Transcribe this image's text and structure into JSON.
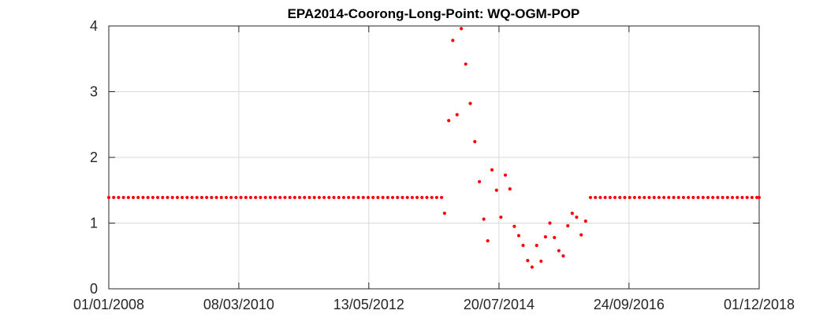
{
  "chart_data": {
    "type": "scatter",
    "title": "EPA2014-Coorong-Long-Point: WQ-OGM-POP",
    "xlabel": "",
    "ylabel": "",
    "x_axis_type": "date",
    "xlim": [
      "2008-01-01",
      "2018-12-01"
    ],
    "ylim": [
      0,
      4
    ],
    "grid": true,
    "marker_color": "#ff0000",
    "x_ticks": [
      {
        "date": "2008-01-01",
        "label": "01/01/2008"
      },
      {
        "date": "2010-03-08",
        "label": "08/03/2010"
      },
      {
        "date": "2012-05-13",
        "label": "13/05/2012"
      },
      {
        "date": "2014-07-20",
        "label": "20/07/2014"
      },
      {
        "date": "2016-09-24",
        "label": "24/09/2016"
      },
      {
        "date": "2018-12-01",
        "label": "01/12/2018"
      }
    ],
    "y_ticks": [
      0,
      1,
      2,
      3,
      4
    ],
    "series": [
      {
        "points": [
          [
            "2008-01-01",
            1.39
          ],
          [
            "2008-01-31",
            1.39
          ],
          [
            "2008-03-01",
            1.39
          ],
          [
            "2008-03-31",
            1.39
          ],
          [
            "2008-04-30",
            1.39
          ],
          [
            "2008-05-30",
            1.39
          ],
          [
            "2008-06-29",
            1.39
          ],
          [
            "2008-07-29",
            1.39
          ],
          [
            "2008-08-28",
            1.39
          ],
          [
            "2008-09-27",
            1.39
          ],
          [
            "2008-10-27",
            1.39
          ],
          [
            "2008-11-26",
            1.39
          ],
          [
            "2008-12-26",
            1.39
          ],
          [
            "2009-01-25",
            1.39
          ],
          [
            "2009-02-24",
            1.39
          ],
          [
            "2009-03-26",
            1.39
          ],
          [
            "2009-04-25",
            1.39
          ],
          [
            "2009-05-25",
            1.39
          ],
          [
            "2009-06-24",
            1.39
          ],
          [
            "2009-07-24",
            1.39
          ],
          [
            "2009-08-23",
            1.39
          ],
          [
            "2009-09-22",
            1.39
          ],
          [
            "2009-10-22",
            1.39
          ],
          [
            "2009-11-21",
            1.39
          ],
          [
            "2009-12-21",
            1.39
          ],
          [
            "2010-01-20",
            1.39
          ],
          [
            "2010-02-19",
            1.39
          ],
          [
            "2010-03-21",
            1.39
          ],
          [
            "2010-04-20",
            1.39
          ],
          [
            "2010-05-20",
            1.39
          ],
          [
            "2010-06-19",
            1.39
          ],
          [
            "2010-07-19",
            1.39
          ],
          [
            "2010-08-18",
            1.39
          ],
          [
            "2010-09-17",
            1.39
          ],
          [
            "2010-10-17",
            1.39
          ],
          [
            "2010-11-16",
            1.39
          ],
          [
            "2010-12-16",
            1.39
          ],
          [
            "2011-01-15",
            1.39
          ],
          [
            "2011-02-14",
            1.39
          ],
          [
            "2011-03-16",
            1.39
          ],
          [
            "2011-04-15",
            1.39
          ],
          [
            "2011-05-15",
            1.39
          ],
          [
            "2011-06-14",
            1.39
          ],
          [
            "2011-07-14",
            1.39
          ],
          [
            "2011-08-13",
            1.39
          ],
          [
            "2011-09-12",
            1.39
          ],
          [
            "2011-10-12",
            1.39
          ],
          [
            "2011-11-11",
            1.39
          ],
          [
            "2011-12-11",
            1.39
          ],
          [
            "2012-01-10",
            1.39
          ],
          [
            "2012-02-09",
            1.39
          ],
          [
            "2012-03-10",
            1.39
          ],
          [
            "2012-04-09",
            1.39
          ],
          [
            "2012-05-09",
            1.39
          ],
          [
            "2012-06-08",
            1.39
          ],
          [
            "2012-07-08",
            1.39
          ],
          [
            "2012-08-07",
            1.39
          ],
          [
            "2012-09-06",
            1.39
          ],
          [
            "2012-10-06",
            1.39
          ],
          [
            "2012-11-05",
            1.39
          ],
          [
            "2012-12-05",
            1.39
          ],
          [
            "2013-01-04",
            1.39
          ],
          [
            "2013-02-03",
            1.39
          ],
          [
            "2013-03-05",
            1.39
          ],
          [
            "2013-04-04",
            1.39
          ],
          [
            "2013-05-04",
            1.39
          ],
          [
            "2013-06-03",
            1.39
          ],
          [
            "2013-07-03",
            1.39
          ],
          [
            "2013-08-02",
            1.39
          ],
          [
            "2013-08-20",
            1.15
          ],
          [
            "2013-09-15",
            2.56
          ],
          [
            "2013-10-10",
            3.78
          ],
          [
            "2013-11-05",
            2.65
          ],
          [
            "2013-12-01",
            3.96
          ],
          [
            "2013-12-28",
            3.42
          ],
          [
            "2014-01-25",
            2.82
          ],
          [
            "2014-02-22",
            2.24
          ],
          [
            "2014-03-22",
            1.63
          ],
          [
            "2014-04-18",
            1.06
          ],
          [
            "2014-05-12",
            0.73
          ],
          [
            "2014-06-07",
            1.81
          ],
          [
            "2014-07-05",
            1.5
          ],
          [
            "2014-08-01",
            1.09
          ],
          [
            "2014-08-28",
            1.73
          ],
          [
            "2014-09-25",
            1.52
          ],
          [
            "2014-10-22",
            0.95
          ],
          [
            "2014-11-18",
            0.81
          ],
          [
            "2014-12-15",
            0.66
          ],
          [
            "2015-01-12",
            0.43
          ],
          [
            "2015-02-08",
            0.33
          ],
          [
            "2015-03-08",
            0.66
          ],
          [
            "2015-04-04",
            0.42
          ],
          [
            "2015-05-01",
            0.79
          ],
          [
            "2015-05-28",
            1.0
          ],
          [
            "2015-06-25",
            0.78
          ],
          [
            "2015-07-22",
            0.58
          ],
          [
            "2015-08-18",
            0.5
          ],
          [
            "2015-09-15",
            0.96
          ],
          [
            "2015-10-12",
            1.15
          ],
          [
            "2015-11-08",
            1.09
          ],
          [
            "2015-12-06",
            0.82
          ],
          [
            "2016-01-02",
            1.03
          ],
          [
            "2016-02-01",
            1.39
          ],
          [
            "2016-03-02",
            1.39
          ],
          [
            "2016-04-01",
            1.39
          ],
          [
            "2016-05-01",
            1.39
          ],
          [
            "2016-05-31",
            1.39
          ],
          [
            "2016-06-30",
            1.39
          ],
          [
            "2016-07-30",
            1.39
          ],
          [
            "2016-08-29",
            1.39
          ],
          [
            "2016-09-28",
            1.39
          ],
          [
            "2016-10-28",
            1.39
          ],
          [
            "2016-11-27",
            1.39
          ],
          [
            "2016-12-27",
            1.39
          ],
          [
            "2017-01-26",
            1.39
          ],
          [
            "2017-02-25",
            1.39
          ],
          [
            "2017-03-27",
            1.39
          ],
          [
            "2017-04-26",
            1.39
          ],
          [
            "2017-05-26",
            1.39
          ],
          [
            "2017-06-25",
            1.39
          ],
          [
            "2017-07-25",
            1.39
          ],
          [
            "2017-08-24",
            1.39
          ],
          [
            "2017-09-23",
            1.39
          ],
          [
            "2017-10-23",
            1.39
          ],
          [
            "2017-11-22",
            1.39
          ],
          [
            "2017-12-22",
            1.39
          ],
          [
            "2018-01-21",
            1.39
          ],
          [
            "2018-02-20",
            1.39
          ],
          [
            "2018-03-22",
            1.39
          ],
          [
            "2018-04-21",
            1.39
          ],
          [
            "2018-05-21",
            1.39
          ],
          [
            "2018-06-20",
            1.39
          ],
          [
            "2018-07-20",
            1.39
          ],
          [
            "2018-08-19",
            1.39
          ],
          [
            "2018-09-18",
            1.39
          ],
          [
            "2018-10-18",
            1.39
          ],
          [
            "2018-11-17",
            1.39
          ],
          [
            "2018-12-01",
            1.39
          ]
        ]
      }
    ]
  }
}
